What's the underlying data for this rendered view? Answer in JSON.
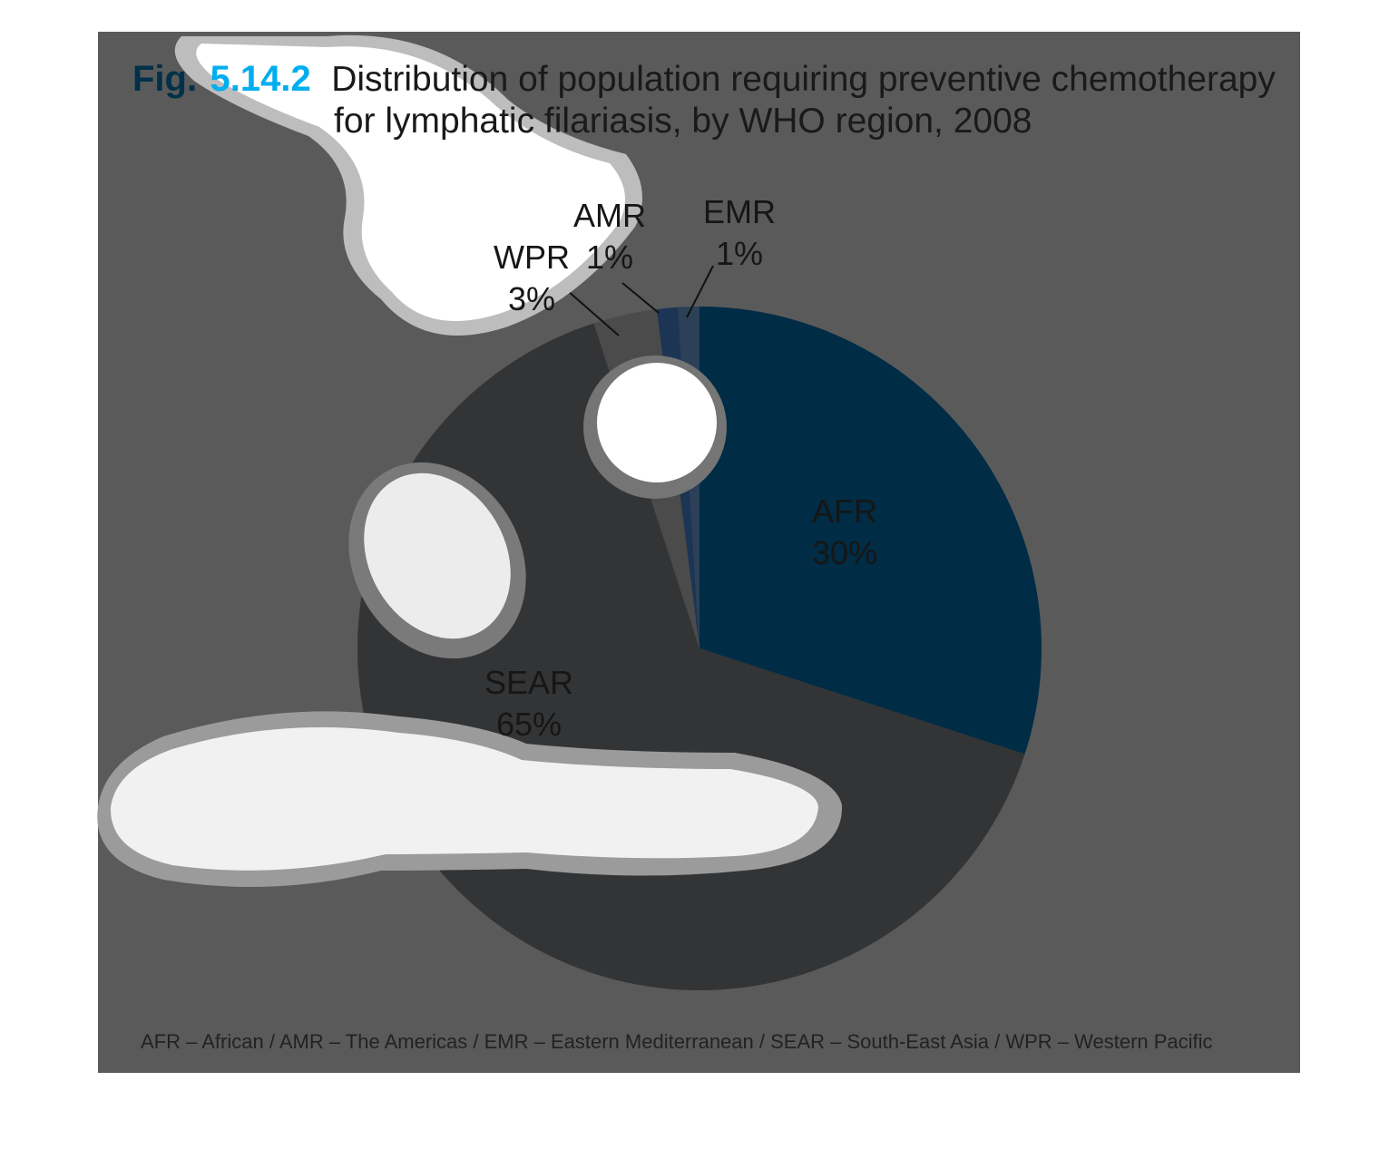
{
  "figure": {
    "fig_prefix": "Fig.",
    "fig_number": "5.14.2",
    "title_line1": "Distribution of population requiring preventive chemotherapy",
    "title_line2": "for lymphatic filariasis, by WHO region, 2008",
    "footnote": "AFR – African / AMR – The Americas / EMR – Eastern Mediterranean / SEAR – South-East Asia / WPR – Western Pacific"
  },
  "colors": {
    "panel_background": "#5a5a5a",
    "fig_prefix": "#003149",
    "fig_number": "#00aeef"
  },
  "chart_data": {
    "type": "pie",
    "title": "Distribution of population requiring preventive chemotherapy for lymphatic filariasis, by WHO region, 2008",
    "slices": [
      {
        "label": "AFR",
        "value": 30,
        "value_label": "30%",
        "color": "#002c45"
      },
      {
        "label": "SEAR",
        "value": 65,
        "value_label": "65%",
        "color": "#333436"
      },
      {
        "label": "WPR",
        "value": 3,
        "value_label": "3%",
        "color": "#4b4b4b"
      },
      {
        "label": "AMR",
        "value": 1,
        "value_label": "1%",
        "color": "#1d3554"
      },
      {
        "label": "EMR",
        "value": 1,
        "value_label": "1%",
        "color": "#2c4058"
      }
    ]
  }
}
